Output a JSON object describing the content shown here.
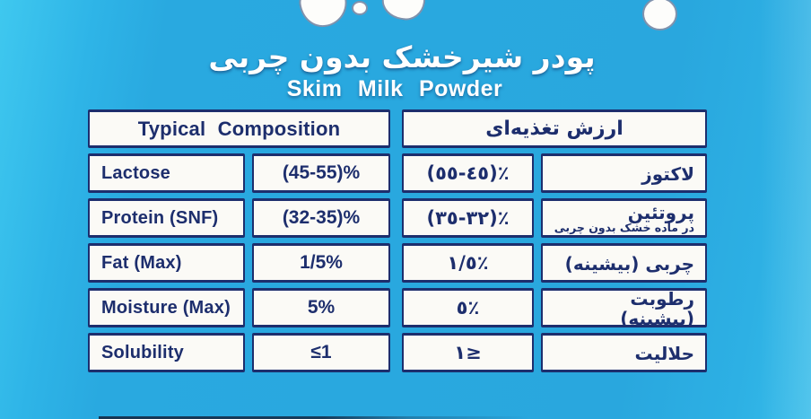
{
  "titles": {
    "fa": "پودر شیرخشک بدون چربی",
    "en": "Skim Milk Powder"
  },
  "colors": {
    "background": "#29a8df",
    "background_light": "#3fc8ef",
    "cell_background": "#fbfaf6",
    "border": "#1d2e6d",
    "text": "#1d2e6d",
    "title_text": "#ffffff"
  },
  "decor": {
    "splash_icon": "milk-splash-blobs"
  },
  "table": {
    "english": {
      "header": "Typical Composition",
      "rows": [
        {
          "label": "Lactose",
          "value": "(45-55)%"
        },
        {
          "label": "Protein (SNF)",
          "value": "(32-35)%"
        },
        {
          "label": "Fat (Max)",
          "value": "1/5%"
        },
        {
          "label": "Moisture (Max)",
          "value": "5%"
        },
        {
          "label": "Solubility",
          "value": "≤1"
        }
      ]
    },
    "persian": {
      "header": "ارزش تغذیه‌ای",
      "rows": [
        {
          "label": "لاکتوز",
          "sublabel": "",
          "value": "(٤٥-٥٥)٪"
        },
        {
          "label": "پروتئین",
          "sublabel": "در ماده خشک بدون چربی",
          "value": "(٣٢-٣٥)٪"
        },
        {
          "label": "چربی (بیشینه)",
          "sublabel": "",
          "value": "١/٥٪"
        },
        {
          "label": "رطوبت (بیشینه)",
          "sublabel": "",
          "value": "٥٪"
        },
        {
          "label": "حلالیت",
          "sublabel": "",
          "value": "١≥"
        }
      ]
    }
  }
}
